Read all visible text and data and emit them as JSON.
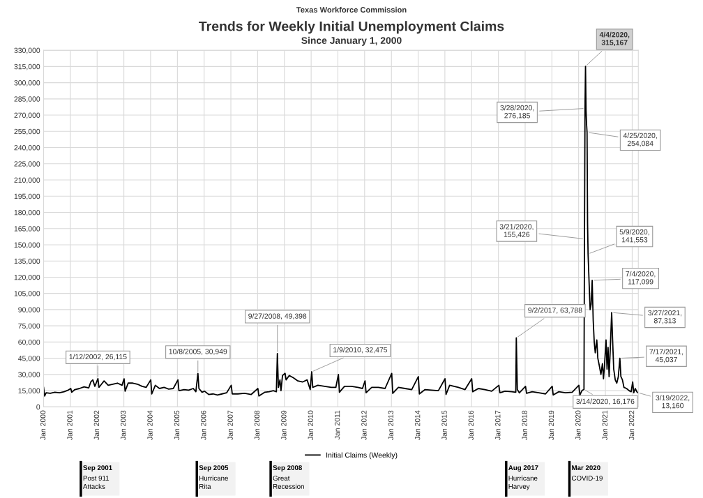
{
  "chart_data": {
    "type": "line",
    "title": "Trends for Weekly Initial Unemployment Claims",
    "subtitle": "Since January 1, 2000",
    "annotations": [
      "Texas Workforce Commission",
      {
        "text": "1/12/2002, 26,115",
        "x": "2002-01-12",
        "y": 26115
      },
      {
        "text": "10/8/2005, 30,949",
        "x": "2005-10-08",
        "y": 30949
      },
      {
        "text": "9/27/2008, 49,398",
        "x": "2008-09-27",
        "y": 49398
      },
      {
        "text": "1/9/2010, 32,475",
        "x": "2010-01-09",
        "y": 32475
      },
      {
        "text": "9/2/2017, 63,788",
        "x": "2017-09-02",
        "y": 63788
      },
      {
        "text": "3/14/2020, 16,176",
        "x": "2020-03-14",
        "y": 16176
      },
      {
        "text": "3/21/2020,\n155,426",
        "x": "2020-03-21",
        "y": 155426
      },
      {
        "text": "3/28/2020,\n276,185",
        "x": "2020-03-28",
        "y": 276185
      },
      {
        "text": "4/4/2020,\n315,167",
        "x": "2020-04-04",
        "y": 315167
      },
      {
        "text": "4/25/2020,\n254,084",
        "x": "2020-04-25",
        "y": 254084
      },
      {
        "text": "5/9/2020,\n141,553",
        "x": "2020-05-09",
        "y": 141553
      },
      {
        "text": "7/4/2020,\n117,099",
        "x": "2020-07-04",
        "y": 117099
      },
      {
        "text": "3/27/2021,\n87,313",
        "x": "2021-03-27",
        "y": 87313
      },
      {
        "text": "7/17/2021,\n45,037",
        "x": "2021-07-17",
        "y": 45037
      },
      {
        "text": "3/19/2022,\n13,160",
        "x": "2022-03-19",
        "y": 13160
      },
      "Sep 2001\nPost 911\nAttacks",
      "Sep 2005\nHurricane\nRita",
      "Sep 2008\nGreat\nRecession",
      "Aug 2017\nHurricane\nHarvey",
      "Mar 2020\nCOVID-19"
    ],
    "xlim": [
      "2000-01-01",
      "2022-03-26"
    ],
    "xticks": [
      {
        "value": "2000-01-01",
        "label": "Jan 2000"
      },
      {
        "value": "2001-01-01",
        "label": "Jan 2001"
      },
      {
        "value": "2002-01-01",
        "label": "Jan 2002"
      },
      {
        "value": "2003-01-01",
        "label": "Jan 2003"
      },
      {
        "value": "2004-01-01",
        "label": "Jan 2004"
      },
      {
        "value": "2005-01-01",
        "label": "Jan 2005"
      },
      {
        "value": "2006-01-01",
        "label": "Jan 2006"
      },
      {
        "value": "2007-01-01",
        "label": "Jan 2007"
      },
      {
        "value": "2008-01-01",
        "label": "Jan 2008"
      },
      {
        "value": "2009-01-01",
        "label": "Jan 2009"
      },
      {
        "value": "2010-01-01",
        "label": "Jan 2010"
      },
      {
        "value": "2011-01-01",
        "label": "Jan 2011"
      },
      {
        "value": "2012-01-01",
        "label": "Jan 2012"
      },
      {
        "value": "2013-01-01",
        "label": "Jan 2013"
      },
      {
        "value": "2014-01-01",
        "label": "Jan 2014"
      },
      {
        "value": "2015-01-01",
        "label": "Jan 2015"
      },
      {
        "value": "2016-01-01",
        "label": "Jan 2016"
      },
      {
        "value": "2017-01-01",
        "label": "Jan 2017"
      },
      {
        "value": "2018-01-01",
        "label": "Jan 2018"
      },
      {
        "value": "2019-01-01",
        "label": "Jan 2019"
      },
      {
        "value": "2020-01-01",
        "label": "Jan 2020"
      },
      {
        "value": "2021-01-01",
        "label": "Jan 2021"
      },
      {
        "value": "2022-01-01",
        "label": "Jan 2022"
      }
    ],
    "ylim": [
      0,
      330000
    ],
    "yticks": [
      0,
      {
        "value": 15000,
        "label": "15,000"
      },
      {
        "value": 30000,
        "label": "30,000"
      },
      {
        "value": 45000,
        "label": "45,000"
      },
      {
        "value": 60000,
        "label": "60,000"
      },
      {
        "value": 75000,
        "label": "75,000"
      },
      {
        "value": 90000,
        "label": "90,000"
      },
      {
        "value": 105000,
        "label": "105,000"
      },
      {
        "value": 120000,
        "label": "120,000"
      },
      {
        "value": 135000,
        "label": "135,000"
      },
      {
        "value": 150000,
        "label": "150,000"
      },
      {
        "value": 165000,
        "label": "165,000"
      },
      {
        "value": 180000,
        "label": "180,000"
      },
      {
        "value": 195000,
        "label": "195,000"
      },
      {
        "value": 210000,
        "label": "210,000"
      },
      {
        "value": 225000,
        "label": "225,000"
      },
      {
        "value": 240000,
        "label": "240,000"
      },
      {
        "value": 255000,
        "label": "255,000"
      },
      {
        "value": 270000,
        "label": "270,000"
      },
      {
        "value": 285000,
        "label": "285,000"
      },
      {
        "value": 300000,
        "label": "300,000"
      },
      {
        "value": 315000,
        "label": "315,000"
      },
      {
        "value": 330000,
        "label": "330,000"
      }
    ],
    "grid": true,
    "legend": "bottom",
    "marker": "none",
    "line_style": "solid",
    "series": [
      {
        "name": "Initial Claims (Weekly)",
        "color": "#000000",
        "x": [
          "2000-01-01",
          "2000-01-15",
          "2000-02-05",
          "2000-04-01",
          "2000-06-03",
          "2000-08-05",
          "2000-10-07",
          "2000-12-02",
          "2001-01-06",
          "2001-01-20",
          "2001-03-03",
          "2001-05-05",
          "2001-07-07",
          "2001-09-08",
          "2001-10-06",
          "2001-11-03",
          "2001-12-01",
          "2002-01-12",
          "2002-01-26",
          "2002-03-02",
          "2002-04-06",
          "2002-06-01",
          "2002-08-03",
          "2002-10-05",
          "2002-12-07",
          "2003-01-04",
          "2003-01-18",
          "2003-03-01",
          "2003-05-03",
          "2003-07-05",
          "2003-09-06",
          "2003-11-01",
          "2004-01-03",
          "2004-01-17",
          "2004-03-06",
          "2004-05-01",
          "2004-07-03",
          "2004-09-04",
          "2004-11-06",
          "2005-01-08",
          "2005-01-22",
          "2005-04-02",
          "2005-06-04",
          "2005-08-06",
          "2005-09-10",
          "2005-10-08",
          "2005-10-22",
          "2005-12-03",
          "2006-01-07",
          "2006-03-04",
          "2006-05-06",
          "2006-07-01",
          "2006-09-02",
          "2006-11-04",
          "2007-01-06",
          "2007-01-20",
          "2007-04-07",
          "2007-07-07",
          "2007-10-06",
          "2008-01-05",
          "2008-01-19",
          "2008-04-05",
          "2008-06-07",
          "2008-08-02",
          "2008-09-13",
          "2008-09-27",
          "2008-10-11",
          "2008-11-01",
          "2008-11-15",
          "2008-12-06",
          "2009-01-10",
          "2009-01-24",
          "2009-03-07",
          "2009-05-02",
          "2009-07-04",
          "2009-09-05",
          "2009-11-07",
          "2009-12-19",
          "2010-01-09",
          "2010-01-23",
          "2010-04-03",
          "2010-07-03",
          "2010-10-02",
          "2010-12-04",
          "2011-01-08",
          "2011-01-22",
          "2011-04-02",
          "2011-07-02",
          "2011-10-01",
          "2011-12-03",
          "2012-01-07",
          "2012-01-21",
          "2012-04-07",
          "2012-07-07",
          "2012-10-06",
          "2013-01-05",
          "2013-01-19",
          "2013-04-06",
          "2013-07-06",
          "2013-10-05",
          "2014-01-04",
          "2014-01-18",
          "2014-04-05",
          "2014-07-05",
          "2014-10-04",
          "2015-01-03",
          "2015-01-17",
          "2015-03-07",
          "2015-07-04",
          "2015-10-03",
          "2016-01-02",
          "2016-01-16",
          "2016-04-02",
          "2016-07-02",
          "2016-10-01",
          "2017-01-07",
          "2017-01-21",
          "2017-04-01",
          "2017-07-01",
          "2017-08-26",
          "2017-09-02",
          "2017-09-16",
          "2017-10-14",
          "2018-01-06",
          "2018-01-20",
          "2018-04-07",
          "2018-07-07",
          "2018-10-06",
          "2019-01-05",
          "2019-01-19",
          "2019-04-06",
          "2019-07-06",
          "2019-10-05",
          "2020-01-04",
          "2020-01-18",
          "2020-02-15",
          "2020-03-14",
          "2020-03-21",
          "2020-03-28",
          "2020-04-04",
          "2020-04-11",
          "2020-04-18",
          "2020-04-25",
          "2020-05-02",
          "2020-05-09",
          "2020-05-23",
          "2020-06-06",
          "2020-06-20",
          "2020-07-04",
          "2020-07-18",
          "2020-08-01",
          "2020-08-15",
          "2020-09-05",
          "2020-09-19",
          "2020-10-10",
          "2020-10-31",
          "2020-11-21",
          "2020-12-05",
          "2020-12-19",
          "2021-01-09",
          "2021-01-23",
          "2021-02-06",
          "2021-02-20",
          "2021-03-06",
          "2021-03-27",
          "2021-04-10",
          "2021-04-24",
          "2021-05-15",
          "2021-06-05",
          "2021-06-26",
          "2021-07-17",
          "2021-07-31",
          "2021-08-21",
          "2021-09-11",
          "2021-10-16",
          "2021-11-20",
          "2021-12-18",
          "2022-01-08",
          "2022-01-22",
          "2022-02-12",
          "2022-03-05",
          "2022-03-19"
        ],
        "values": [
          18000,
          10000,
          13000,
          12500,
          13500,
          13000,
          14000,
          15500,
          17000,
          13500,
          16000,
          17000,
          18500,
          17500,
          23000,
          25000,
          19000,
          26115,
          18000,
          21000,
          24000,
          20000,
          21000,
          22000,
          20000,
          26000,
          14500,
          22000,
          22000,
          21000,
          19000,
          18000,
          25000,
          12000,
          20000,
          17000,
          18000,
          16500,
          17000,
          25000,
          15000,
          16000,
          15500,
          17000,
          14000,
          30949,
          17000,
          13500,
          14500,
          11500,
          12000,
          11000,
          12000,
          13000,
          20000,
          12000,
          12000,
          12500,
          11500,
          17000,
          10000,
          13500,
          14000,
          15000,
          14000,
          49398,
          18000,
          25000,
          15000,
          29000,
          31000,
          25000,
          29000,
          27000,
          24000,
          23000,
          25000,
          16000,
          32475,
          18000,
          20000,
          19000,
          18000,
          18000,
          30000,
          13500,
          19000,
          19000,
          18000,
          17000,
          24000,
          13000,
          18000,
          18000,
          17000,
          31000,
          12500,
          18000,
          17000,
          16000,
          28000,
          12000,
          16000,
          15500,
          15000,
          26000,
          11500,
          20000,
          18000,
          16000,
          26000,
          14000,
          17000,
          16000,
          14500,
          20000,
          13000,
          14500,
          14000,
          13500,
          63788,
          16000,
          13000,
          19000,
          12500,
          14000,
          13000,
          12000,
          19000,
          11000,
          14000,
          13000,
          13500,
          20000,
          11000,
          15000,
          16176,
          155426,
          276185,
          315167,
          275000,
          262000,
          254084,
          170000,
          141553,
          115000,
          90000,
          95000,
          117099,
          80000,
          60000,
          50000,
          62000,
          45000,
          38000,
          30000,
          40000,
          26000,
          38000,
          62000,
          35000,
          55000,
          28000,
          50000,
          87313,
          60000,
          35000,
          25000,
          22000,
          28000,
          45037,
          28000,
          25000,
          18000,
          17000,
          15000,
          14000,
          23000,
          13000,
          17000,
          14000,
          13160
        ]
      }
    ]
  }
}
